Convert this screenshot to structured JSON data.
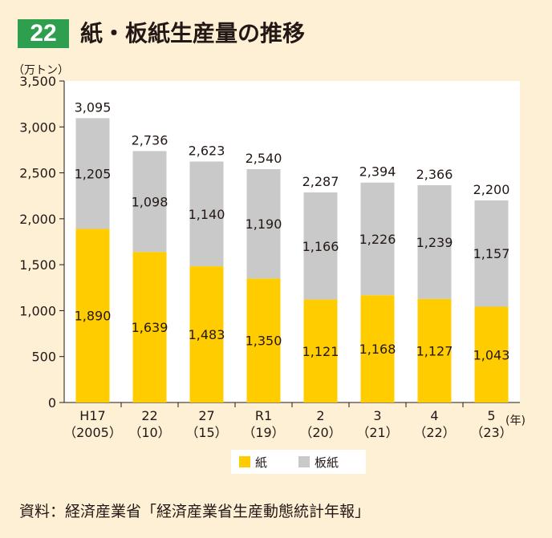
{
  "header": {
    "figure_number": "22",
    "title": "紙・板紙生産量の推移"
  },
  "source_note": "資料：経済産業省「経済産業省生産動態統計年報」",
  "colors": {
    "paper": "#ffcc00",
    "paperboard": "#c9c9ca",
    "plot_background": "#ffffff"
  },
  "chart_data": {
    "type": "bar",
    "stacked": true,
    "unit_label": "（万トン）",
    "x_unit_label": "(年)",
    "categories": [
      [
        "H17",
        "（2005）"
      ],
      [
        "22",
        "（10）"
      ],
      [
        "27",
        "（15）"
      ],
      [
        "R1",
        "（19）"
      ],
      [
        "2",
        "（20）"
      ],
      [
        "3",
        "（21）"
      ],
      [
        "4",
        "（22）"
      ],
      [
        "5",
        "（23）"
      ]
    ],
    "series": [
      {
        "name": "紙",
        "values": [
          1890,
          1639,
          1483,
          1350,
          1121,
          1168,
          1127,
          1043
        ]
      },
      {
        "name": "板紙",
        "values": [
          1205,
          1098,
          1140,
          1190,
          1166,
          1226,
          1239,
          1157
        ]
      }
    ],
    "totals": [
      3095,
      2736,
      2623,
      2540,
      2287,
      2394,
      2366,
      2200
    ],
    "value_labels": {
      "paper": [
        "1,890",
        "1,639",
        "1,483",
        "1,350",
        "1,121",
        "1,168",
        "1,127",
        "1,043"
      ],
      "paperboard": [
        "1,205",
        "1,098",
        "1,140",
        "1,190",
        "1,166",
        "1,226",
        "1,239",
        "1,157"
      ],
      "totals": [
        "3,095",
        "2,736",
        "2,623",
        "2,540",
        "2,287",
        "2,394",
        "2,366",
        "2,200"
      ]
    },
    "ylim": [
      0,
      3500
    ],
    "yticks": [
      0,
      500,
      1000,
      1500,
      2000,
      2500,
      3000,
      3500
    ],
    "ytick_labels": [
      "0",
      "500",
      "1,000",
      "1,500",
      "2,000",
      "2,500",
      "3,000",
      "3,500"
    ],
    "legend": [
      "紙",
      "板紙"
    ],
    "legend_position": "bottom-center",
    "grid": false
  }
}
